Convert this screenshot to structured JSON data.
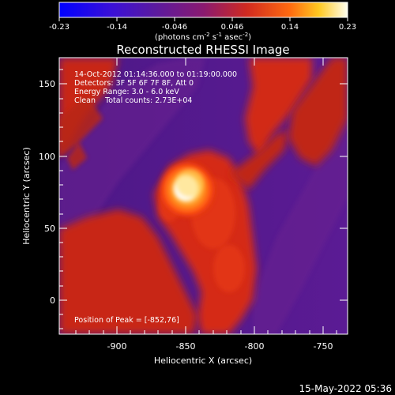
{
  "colorbar": {
    "ticks": [
      "-0.23",
      "-0.14",
      "-0.046",
      "0.046",
      "0.14",
      "0.23"
    ],
    "units": "(photons cm",
    "units_exp1": "-2",
    "units_mid": " s",
    "units_exp2": "-1",
    "units_end": " asec",
    "units_exp3": "-2",
    "units_close": ")"
  },
  "title": "Reconstructed RHESSI Image",
  "annotations": {
    "time_range": "14-Oct-2012 01:14:36.000 to 01:19:00.000",
    "detectors": "Detectors: 3F 5F 6F 7F 8F, Att 0",
    "energy": "Energy Range: 3.0 - 6.0 keV",
    "clean": "Clean    Total counts: 2.73E+04",
    "peak": "Position of Peak = [-852,76]"
  },
  "axes": {
    "xlabel": "Heliocentric X (arcsec)",
    "ylabel": "Heliocentric Y (arcsec)",
    "xticks": [
      "-900",
      "-850",
      "-800",
      "-750"
    ],
    "yticks": [
      "0",
      "50",
      "100",
      "150"
    ]
  },
  "footer_timestamp": "15-May-2022 05:36",
  "colors": {
    "background": "#000000",
    "purple_low": "#5a1a8f",
    "red_mid": "#d62a10",
    "peak_white": "#fffbe0"
  },
  "chart_data": {
    "type": "heatmap",
    "title": "Reconstructed RHESSI Image",
    "xlabel": "Heliocentric X (arcsec)",
    "ylabel": "Heliocentric Y (arcsec)",
    "xlim": [
      -942,
      -745
    ],
    "ylim": [
      -24,
      170
    ],
    "colorbar_range": [
      -0.23,
      0.23
    ],
    "peak": {
      "x": -852,
      "y": 76
    }
  }
}
